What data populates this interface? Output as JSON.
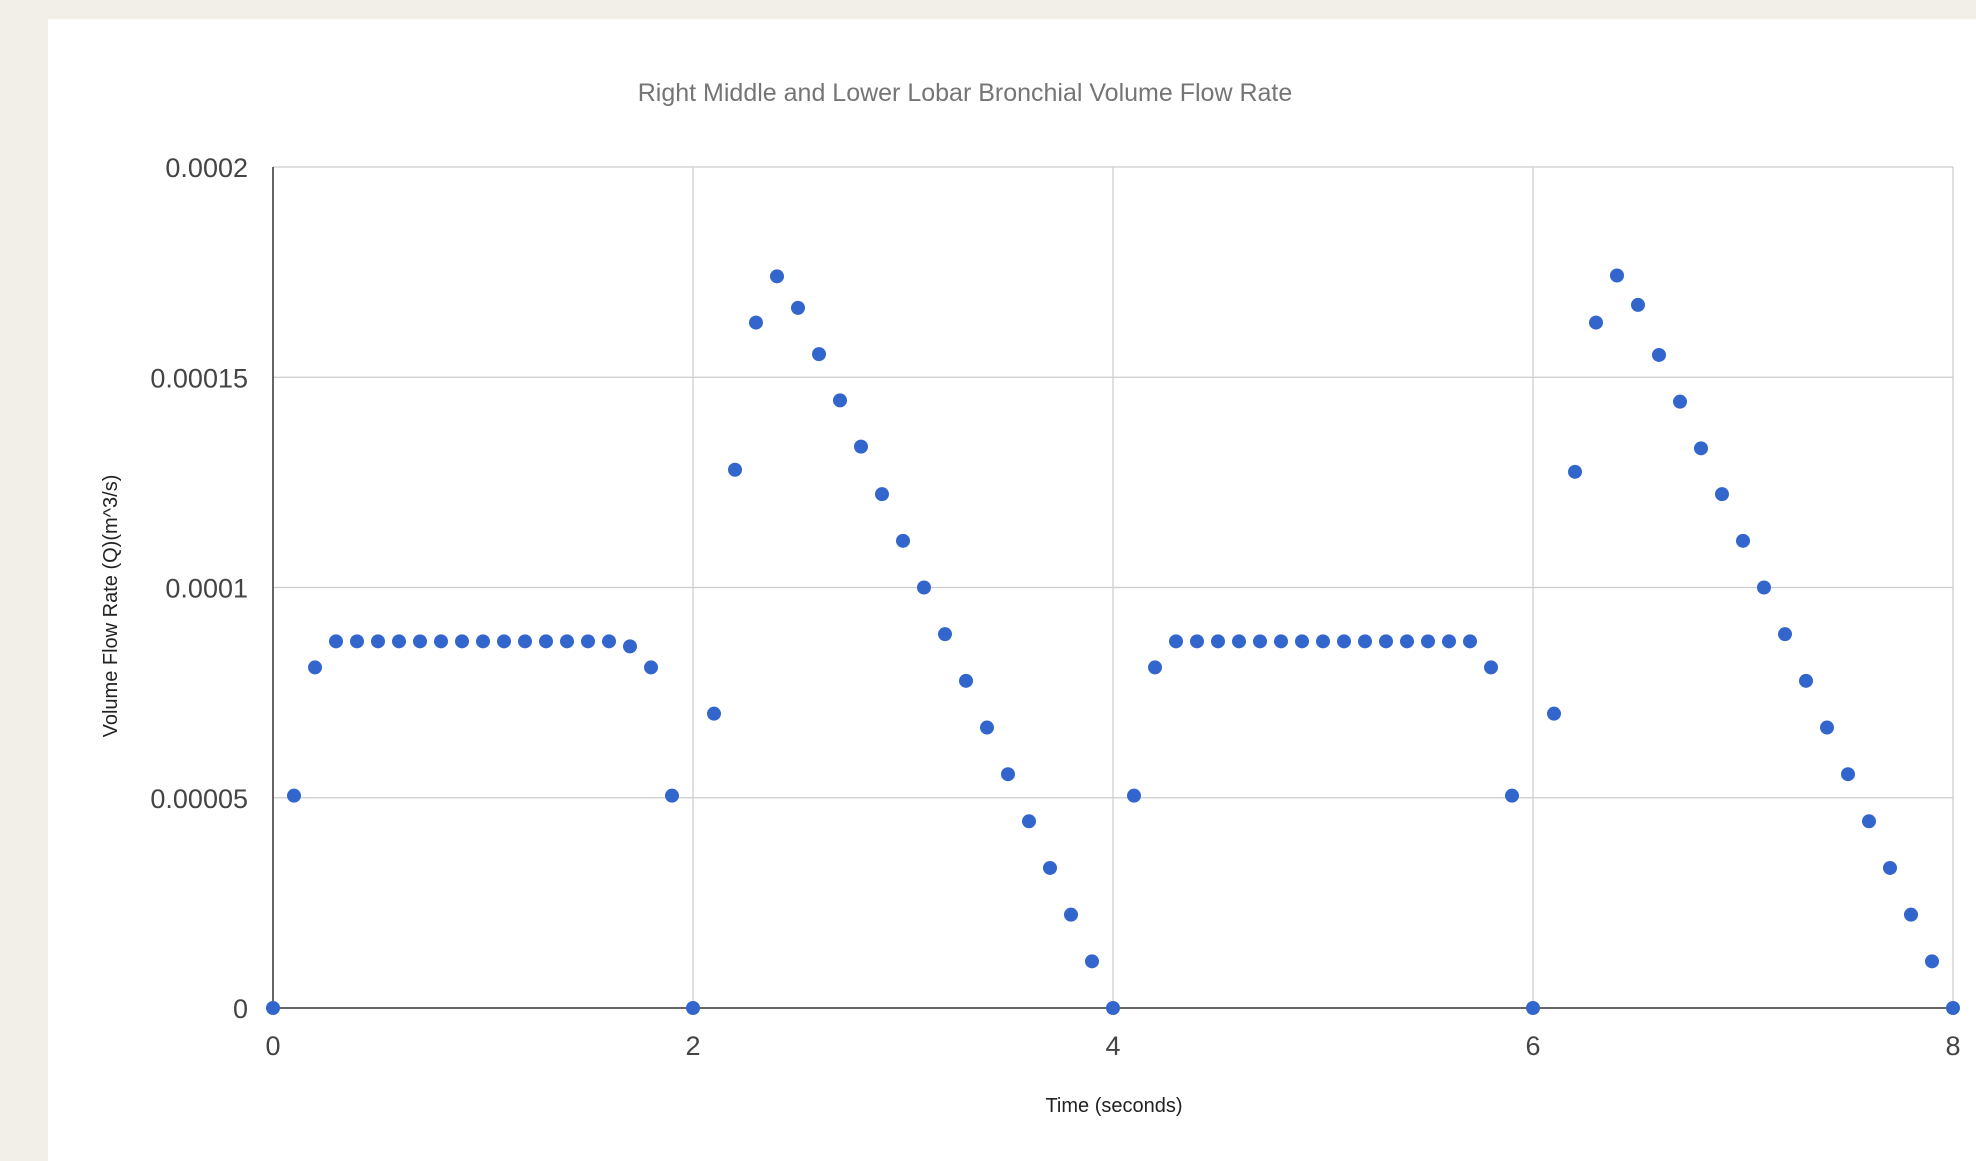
{
  "chart_data": {
    "type": "scatter",
    "title": "Right Middle and Lower Lobar Bronchial Volume Flow Rate",
    "xlabel": "Time (seconds)",
    "ylabel": "Volume Flow Rate (Q)(m^3/s)",
    "xlim": [
      0,
      8
    ],
    "ylim": [
      0,
      0.0002
    ],
    "x_ticks": [
      0,
      2,
      4,
      6,
      8
    ],
    "x_tick_labels": [
      "0",
      "2",
      "4",
      "6",
      "8"
    ],
    "y_ticks": [
      0,
      5e-05,
      0.0001,
      0.00015,
      0.0002
    ],
    "y_tick_labels": [
      "0",
      "0.00005",
      "0.0001",
      "0.00015",
      "0.0002"
    ],
    "grid": true,
    "legend": "none",
    "color": "#3366cc",
    "series": [
      {
        "x": [
          0,
          0.1,
          0.2,
          0.3,
          0.4,
          0.5,
          0.6,
          0.7,
          0.8,
          0.9,
          1.0,
          1.1,
          1.2,
          1.3,
          1.4,
          1.5,
          1.6,
          1.7,
          1.8,
          1.9,
          2.0,
          2.1,
          2.2,
          2.3,
          2.4,
          2.5,
          2.6,
          2.7,
          2.8,
          2.9,
          3.0,
          3.1,
          3.2,
          3.3,
          3.4,
          3.5,
          3.6,
          3.7,
          3.8,
          3.9,
          4.0,
          4.1,
          4.2,
          4.3,
          4.4,
          4.5,
          4.6,
          4.7,
          4.8,
          4.9,
          5.0,
          5.1,
          5.2,
          5.3,
          5.4,
          5.5,
          5.6,
          5.7,
          5.8,
          5.9,
          6.0,
          6.1,
          6.2,
          6.3,
          6.4,
          6.5,
          6.6,
          6.7,
          6.8,
          6.9,
          7.0,
          7.1,
          7.2,
          7.3,
          7.4,
          7.5,
          7.6,
          7.7,
          7.8,
          7.9,
          8.0
        ],
        "y": [
          0,
          5.05e-05,
          8.1e-05,
          8.72e-05,
          8.72e-05,
          8.72e-05,
          8.72e-05,
          8.72e-05,
          8.72e-05,
          8.72e-05,
          8.72e-05,
          8.72e-05,
          8.72e-05,
          8.72e-05,
          8.72e-05,
          8.72e-05,
          8.72e-05,
          8.6e-05,
          8.1e-05,
          5.05e-05,
          0,
          7e-05,
          0.000128,
          0.000163,
          0.000174,
          0.0001665,
          0.0001555,
          0.0001445,
          0.0001335,
          0.0001222,
          0.0001111,
          0.0001,
          8.89e-05,
          7.78e-05,
          6.67e-05,
          5.56e-05,
          4.44e-05,
          3.33e-05,
          2.22e-05,
          1.11e-05,
          0,
          5.05e-05,
          8.1e-05,
          8.72e-05,
          8.72e-05,
          8.72e-05,
          8.72e-05,
          8.72e-05,
          8.72e-05,
          8.72e-05,
          8.72e-05,
          8.72e-05,
          8.72e-05,
          8.72e-05,
          8.72e-05,
          8.72e-05,
          8.72e-05,
          8.72e-05,
          8.1e-05,
          5.05e-05,
          0,
          7e-05,
          0.0001275,
          0.000163,
          0.0001742,
          0.0001672,
          0.0001553,
          0.0001442,
          0.0001331,
          0.0001222,
          0.0001111,
          0.0001,
          8.89e-05,
          7.78e-05,
          6.67e-05,
          5.56e-05,
          4.44e-05,
          3.33e-05,
          2.22e-05,
          1.11e-05,
          0
        ]
      }
    ]
  }
}
